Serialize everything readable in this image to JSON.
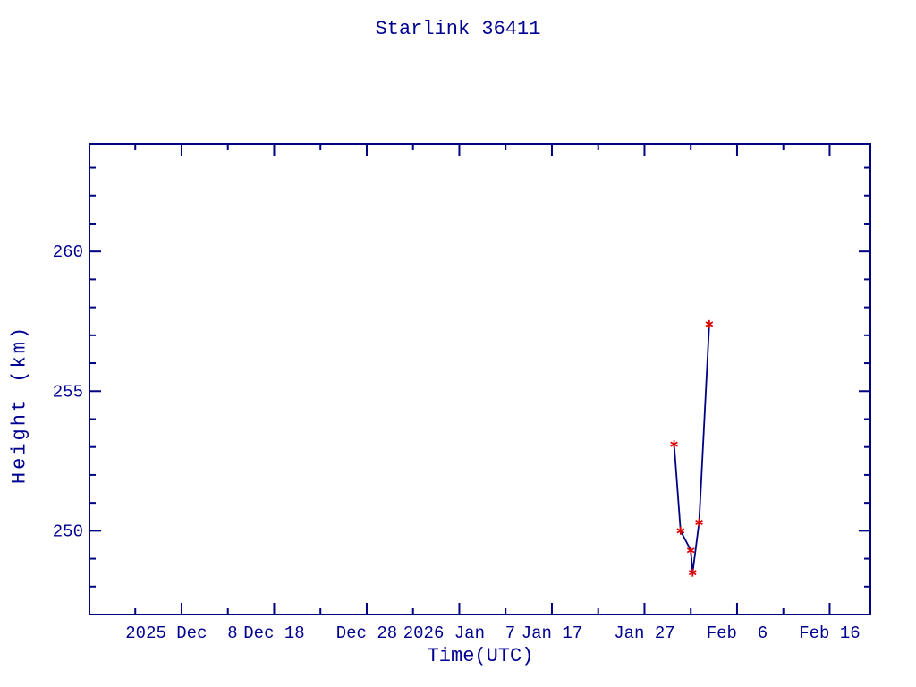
{
  "page": {
    "title": "Starlink 36411",
    "background": "#ffffff"
  },
  "chart_data": {
    "type": "line",
    "title": "Starlink 36411",
    "xlabel": "Time(UTC)",
    "ylabel": "Height (km)",
    "grid": false,
    "legend": null,
    "colors": {
      "axis": "#000080",
      "line": "#000080",
      "marker": "#dd0000",
      "text": "#000090"
    },
    "xlim_days": [
      -9.95,
      74.4
    ],
    "ylim_km": [
      247.0,
      263.85
    ],
    "x_ticks_major": [
      {
        "t_days": 0,
        "label": "2025 Dec  8"
      },
      {
        "t_days": 10,
        "label": "Dec 18"
      },
      {
        "t_days": 20,
        "label": "Dec 28"
      },
      {
        "t_days": 30,
        "label": "2026 Jan  7"
      },
      {
        "t_days": 40,
        "label": "Jan 17"
      },
      {
        "t_days": 50,
        "label": "Jan 27"
      },
      {
        "t_days": 60,
        "label": "Feb  6"
      },
      {
        "t_days": 70,
        "label": "Feb 16"
      }
    ],
    "x_ticks_minor_days": [
      -5,
      5,
      15,
      25,
      35,
      45,
      55,
      65
    ],
    "y_ticks_major": [
      {
        "km": 250,
        "label": "250"
      },
      {
        "km": 255,
        "label": "255"
      },
      {
        "km": 260,
        "label": "260"
      }
    ],
    "y_ticks_minor_km": [
      248,
      249,
      251,
      252,
      253,
      254,
      256,
      257,
      258,
      259,
      261,
      262,
      263
    ],
    "series": [
      {
        "name": "height",
        "marker": "asterisk",
        "points": [
          {
            "date": "2026 Jan 30",
            "days_since_2025_dec_8": 53.2,
            "height_km": 253.1
          },
          {
            "date": "2026 Jan 31",
            "days_since_2025_dec_8": 53.9,
            "height_km": 250.0
          },
          {
            "date": "2026 Feb 1",
            "days_since_2025_dec_8": 55.0,
            "height_km": 249.3
          },
          {
            "date": "2026 Feb 1",
            "days_since_2025_dec_8": 55.2,
            "height_km": 248.5
          },
          {
            "date": "2026 Feb 2",
            "days_since_2025_dec_8": 55.9,
            "height_km": 250.3
          },
          {
            "date": "2026 Feb 3",
            "days_since_2025_dec_8": 57.0,
            "height_km": 257.4
          }
        ]
      }
    ]
  }
}
